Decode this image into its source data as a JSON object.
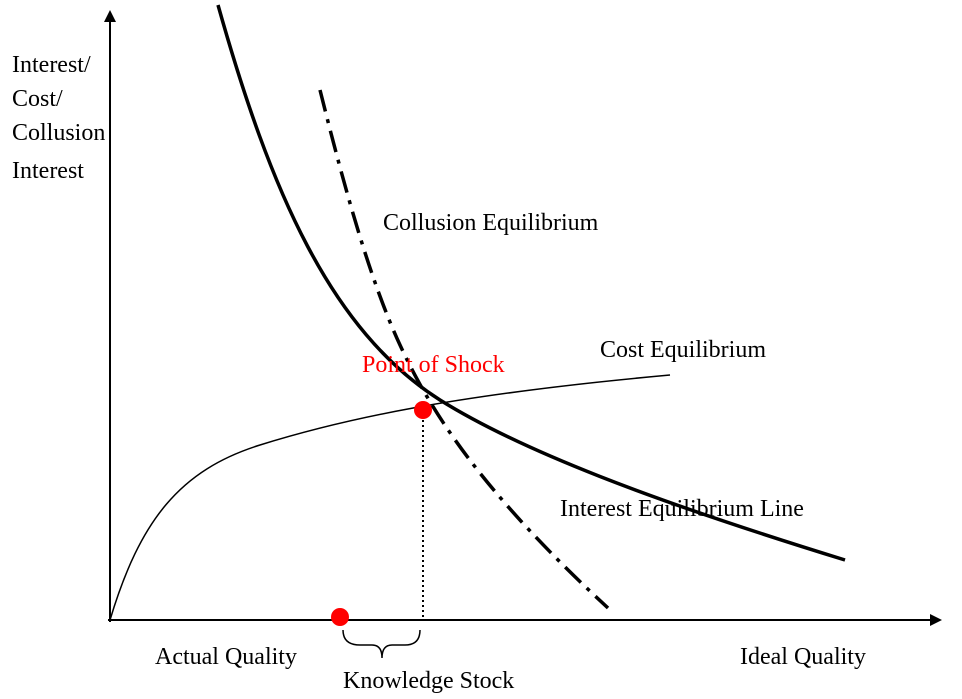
{
  "y_axis_label": [
    "Interest/",
    "Cost/",
    "Collusion",
    "Interest"
  ],
  "curves": {
    "collusion": "Collusion Equilibrium",
    "cost": "Cost Equilibrium",
    "interest": "Interest Equilibrium Line"
  },
  "point_label": "Point of Shock",
  "x_axis": {
    "left": "Actual Quality",
    "right": "Ideal Quality",
    "gap": "Knowledge Stock"
  }
}
